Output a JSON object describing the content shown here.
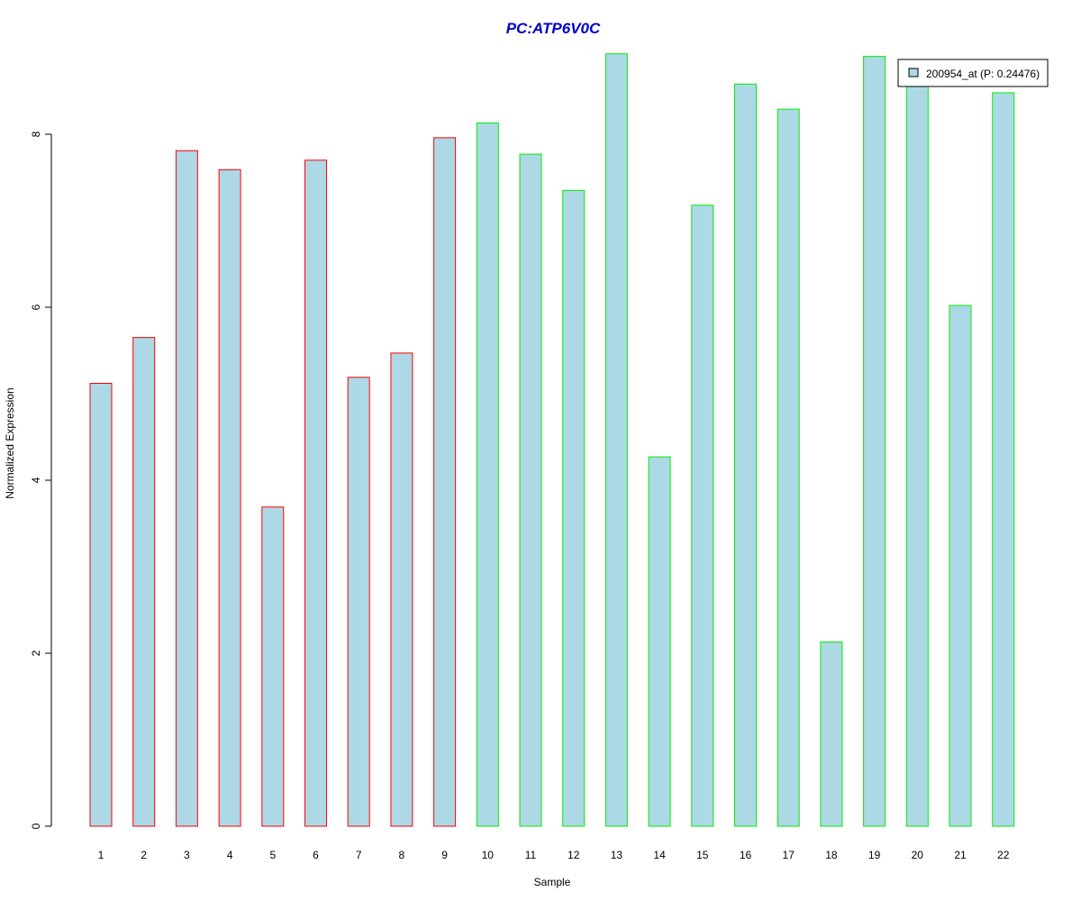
{
  "chart_data": {
    "type": "bar",
    "title": "PC:ATP6V0C",
    "xlabel": "Sample",
    "ylabel": "Normalized Expression",
    "categories": [
      "1",
      "2",
      "3",
      "4",
      "5",
      "6",
      "7",
      "8",
      "9",
      "10",
      "11",
      "12",
      "13",
      "14",
      "15",
      "16",
      "17",
      "18",
      "19",
      "20",
      "21",
      "22"
    ],
    "series": [
      {
        "name": "200954_at (P: 0.24476)",
        "values": [
          5.12,
          5.65,
          7.81,
          7.59,
          3.69,
          7.7,
          5.19,
          5.47,
          7.96,
          8.13,
          7.77,
          7.35,
          8.93,
          4.27,
          7.18,
          8.58,
          8.29,
          2.13,
          8.9,
          8.6,
          6.02,
          8.48
        ]
      }
    ],
    "group_border_colors": [
      "#ff0000",
      "#ff0000",
      "#ff0000",
      "#ff0000",
      "#ff0000",
      "#ff0000",
      "#ff0000",
      "#ff0000",
      "#ff0000",
      "#00ee00",
      "#00ee00",
      "#00ee00",
      "#00ee00",
      "#00ee00",
      "#00ee00",
      "#00ee00",
      "#00ee00",
      "#00ee00",
      "#00ee00",
      "#00ee00",
      "#00ee00",
      "#00ee00"
    ],
    "bar_fill_color": "#add8e6",
    "title_color": "#0000cc",
    "yticks": [
      0,
      2,
      4,
      6,
      8
    ],
    "ylim": [
      0,
      9
    ],
    "legend_position": "top-right",
    "grid": false
  }
}
